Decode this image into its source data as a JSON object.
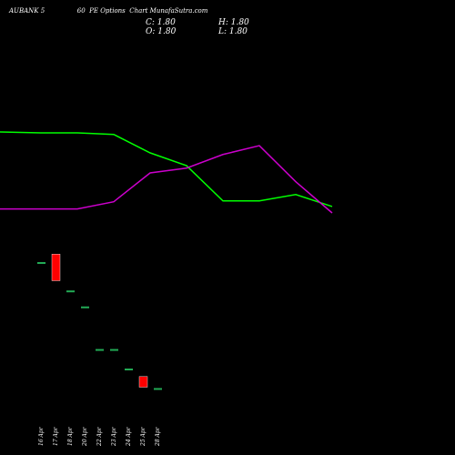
{
  "header": {
    "title": "AUBANK 5                60  PE Options  Chart MunafaSutra.com",
    "close": "C: 1.80",
    "high": "H: 1.80",
    "open": "O: 1.80",
    "low": "L: 1.80"
  },
  "colors": {
    "background": "#000000",
    "bullish": "#22aa55",
    "bearish": "#ff0000",
    "line_green": "#00ff00",
    "line_magenta": "#cc00cc"
  },
  "chart_data": {
    "type": "candlestick",
    "title": "",
    "xlabel": "",
    "ylabel": "",
    "categories": [
      "16 Apr",
      "17 Apr",
      "18 Apr",
      "20 Apr",
      "22 Apr",
      "23 Apr",
      "24 Apr",
      "25 Apr",
      "28 Apr"
    ],
    "candles": [
      {
        "date": "16 Apr",
        "open": 16.0,
        "high": 16.0,
        "low": 16.0,
        "close": 16.0,
        "direction": "up"
      },
      {
        "date": "17 Apr",
        "open": 17.0,
        "high": 17.0,
        "low": 14.0,
        "close": 14.0,
        "direction": "down"
      },
      {
        "date": "18 Apr",
        "open": 12.8,
        "high": 12.8,
        "low": 12.8,
        "close": 12.8,
        "direction": "up"
      },
      {
        "date": "20 Apr",
        "open": 11.0,
        "high": 11.0,
        "low": 11.0,
        "close": 11.0,
        "direction": "up"
      },
      {
        "date": "22 Apr",
        "open": 6.2,
        "high": 6.2,
        "low": 6.2,
        "close": 6.2,
        "direction": "up"
      },
      {
        "date": "23 Apr",
        "open": 6.2,
        "high": 6.2,
        "low": 6.2,
        "close": 6.2,
        "direction": "up"
      },
      {
        "date": "24 Apr",
        "open": 4.0,
        "high": 4.0,
        "low": 4.0,
        "close": 4.0,
        "direction": "up"
      },
      {
        "date": "25 Apr",
        "open": 3.2,
        "high": 3.2,
        "low": 2.0,
        "close": 2.0,
        "direction": "down"
      },
      {
        "date": "28 Apr",
        "open": 1.8,
        "high": 1.8,
        "low": 1.8,
        "close": 1.8,
        "direction": "up"
      }
    ],
    "candle_ylim": [
      0,
      20
    ],
    "lines": [
      {
        "color": "#00ff00",
        "values": [
          100,
          100,
          98,
          75,
          59,
          15,
          15,
          23,
          8
        ]
      },
      {
        "color": "#cc00cc",
        "values": [
          5,
          5,
          14,
          50,
          56,
          73,
          84,
          39,
          0
        ]
      }
    ],
    "line_ylim": [
      0,
      100
    ],
    "grid": false,
    "legend": "none"
  }
}
